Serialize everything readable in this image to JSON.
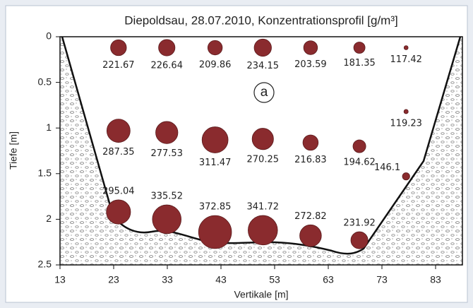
{
  "chart_data": {
    "type": "bubble",
    "title": "Diepoldsau, 28.07.2010, Konzentrationsprofil [g/m³]",
    "annotation": "a",
    "xlabel": "Vertikale [m]",
    "ylabel": "Tiefe [m]",
    "x": [
      23.9,
      32.9,
      41.9,
      50.8,
      59.7,
      68.8,
      77.5,
      77.5,
      23.9,
      32.9,
      41.9,
      50.8,
      59.7,
      68.8,
      77.5,
      23.9,
      32.9,
      41.9,
      50.8,
      59.7,
      68.8
    ],
    "y": [
      0.12,
      0.12,
      0.12,
      0.12,
      0.12,
      0.12,
      0.12,
      0.82,
      1.03,
      1.05,
      1.13,
      1.12,
      1.16,
      1.2,
      1.53,
      1.92,
      2.0,
      2.14,
      2.12,
      2.18,
      2.23
    ],
    "values": [
      221.67,
      226.64,
      209.86,
      234.15,
      203.59,
      181.35,
      117.42,
      119.23,
      287.35,
      277.53,
      311.47,
      270.25,
      216.83,
      194.62,
      146.1,
      295.04,
      335.52,
      372.85,
      341.72,
      272.82,
      231.92
    ],
    "color": "#8a2b2e",
    "xlim": [
      13,
      88
    ],
    "xticks": [
      13,
      23,
      33,
      43,
      53,
      63,
      73,
      83
    ],
    "ylim": [
      0,
      2.5
    ],
    "yticks": [
      0,
      0.5,
      1,
      1.5,
      2,
      2.5
    ],
    "y_inverted": true
  }
}
